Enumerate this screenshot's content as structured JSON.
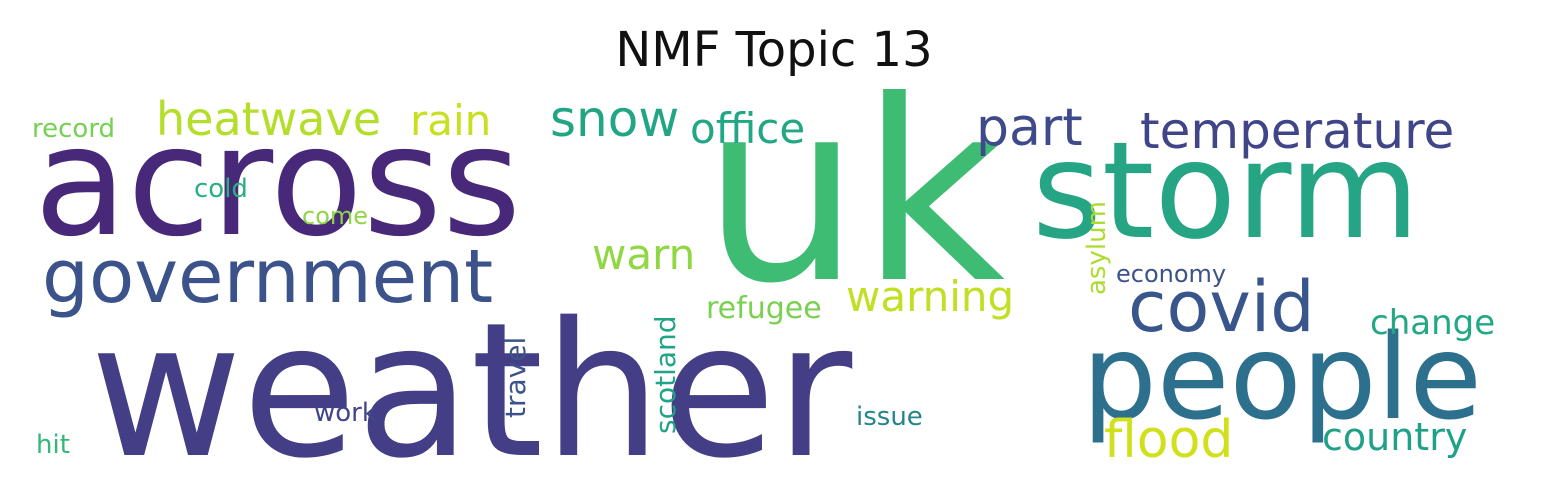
{
  "title": "NMF Topic 13",
  "words": [
    {
      "text": "weather",
      "color": "#433e85"
    },
    {
      "text": "uk",
      "color": "#3fbc73"
    },
    {
      "text": "across",
      "color": "#482979"
    },
    {
      "text": "storm",
      "color": "#25a584"
    },
    {
      "text": "people",
      "color": "#2d708e"
    },
    {
      "text": "government",
      "color": "#3b528b"
    },
    {
      "text": "covid",
      "color": "#39568c"
    },
    {
      "text": "part",
      "color": "#3e4a89"
    },
    {
      "text": "temperature",
      "color": "#404588"
    },
    {
      "text": "snow",
      "color": "#21a685"
    },
    {
      "text": "heatwave",
      "color": "#b5de2b"
    },
    {
      "text": "flood",
      "color": "#d0e11c"
    },
    {
      "text": "warning",
      "color": "#c2df23"
    },
    {
      "text": "rain",
      "color": "#c8e020"
    },
    {
      "text": "office",
      "color": "#22a785"
    },
    {
      "text": "warn",
      "color": "#90d743"
    },
    {
      "text": "country",
      "color": "#1fa188"
    },
    {
      "text": "change",
      "color": "#22a884"
    },
    {
      "text": "scotland",
      "color": "#20a486"
    },
    {
      "text": "travel",
      "color": "#3b528b"
    },
    {
      "text": "asylum",
      "color": "#addc30"
    },
    {
      "text": "refugee",
      "color": "#7ad151"
    },
    {
      "text": "record",
      "color": "#75d054"
    },
    {
      "text": "economy",
      "color": "#3b528b"
    },
    {
      "text": "work",
      "color": "#404688"
    },
    {
      "text": "issue",
      "color": "#25848e"
    },
    {
      "text": "cold",
      "color": "#2ab07f"
    },
    {
      "text": "come",
      "color": "#8ed645"
    },
    {
      "text": "hit",
      "color": "#35b779"
    }
  ]
}
